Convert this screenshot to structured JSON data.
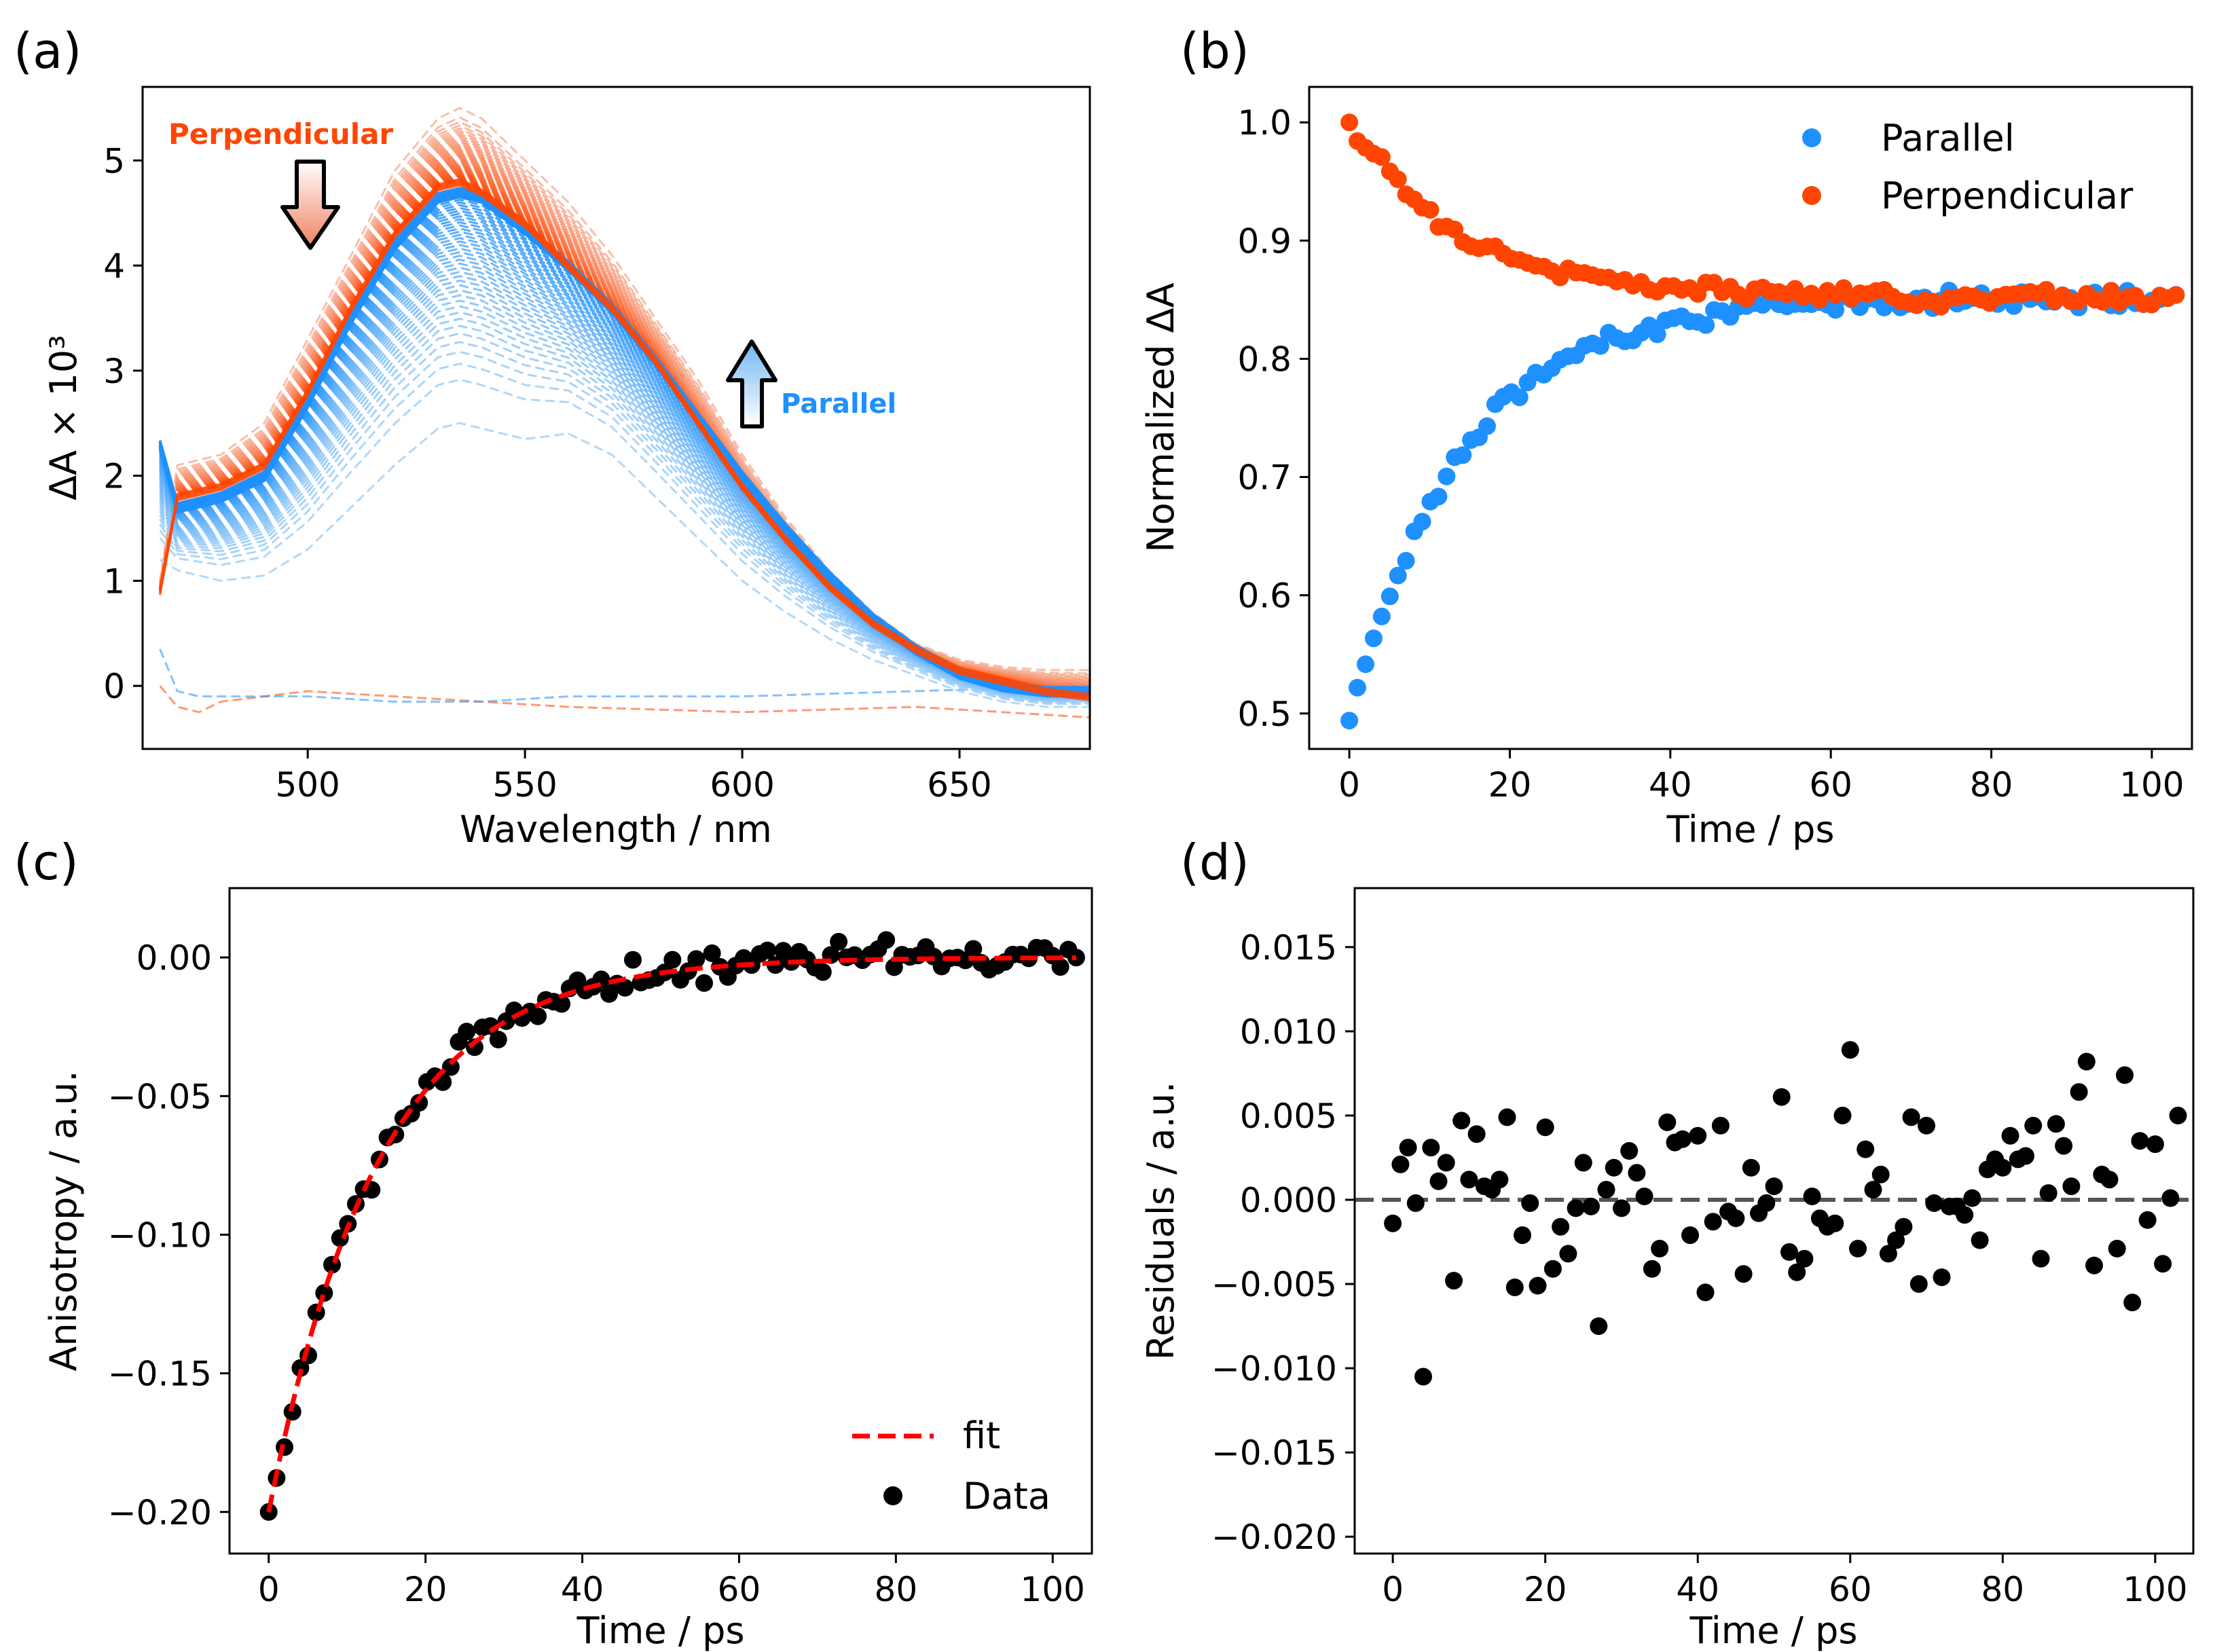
{
  "figure": {
    "panel_labels": [
      "(a)",
      "(b)",
      "(c)",
      "(d)"
    ]
  },
  "colors": {
    "orange": "#FF4500",
    "orange_light": "#F7A88A",
    "blue": "#1E90FF",
    "blue_light": "#9BCDF5",
    "red": "#FF0000",
    "black": "#000000",
    "dash_gray": "#555555"
  },
  "chart_data": [
    {
      "panel": "(a)",
      "type": "line",
      "xlabel": "Wavelength / nm",
      "ylabel": "ΔA × 10³",
      "xlim": [
        462,
        680
      ],
      "ylim": [
        -0.6,
        5.7
      ],
      "xticks": [
        500,
        550,
        600,
        650
      ],
      "yticks": [
        0,
        1,
        2,
        3,
        4,
        5
      ],
      "annotations": {
        "perp_label": "Perpendicular",
        "par_label": "Parallel",
        "perp_arrow": "down",
        "par_arrow": "up"
      },
      "series": [
        {
          "name": "Perpendicular (early, highest)",
          "color": "#FF4500",
          "style": "dashed",
          "x": [
            466,
            470,
            480,
            490,
            500,
            510,
            520,
            530,
            535,
            540,
            550,
            560,
            570,
            580,
            590,
            600,
            610,
            620,
            630,
            640,
            650,
            660,
            670,
            680
          ],
          "y": [
            1.0,
            2.1,
            2.2,
            2.5,
            3.3,
            4.1,
            4.9,
            5.4,
            5.5,
            5.4,
            5.0,
            4.6,
            4.1,
            3.5,
            2.9,
            2.2,
            1.6,
            1.1,
            0.7,
            0.4,
            0.25,
            0.18,
            0.15,
            0.15
          ]
        },
        {
          "name": "Perpendicular (late)",
          "color": "#FF4500",
          "style": "dashed",
          "x": [
            466,
            470,
            480,
            490,
            500,
            510,
            520,
            530,
            535,
            540,
            550,
            560,
            570,
            580,
            590,
            600,
            610,
            620,
            630,
            640,
            650,
            660,
            670,
            680
          ],
          "y": [
            0.9,
            1.8,
            1.9,
            2.1,
            2.8,
            3.6,
            4.3,
            4.75,
            4.8,
            4.7,
            4.4,
            4.0,
            3.6,
            3.1,
            2.5,
            1.9,
            1.4,
            0.95,
            0.6,
            0.35,
            0.15,
            0.05,
            -0.05,
            -0.1
          ]
        },
        {
          "name": "Parallel (late)",
          "color": "#1E90FF",
          "style": "dashed",
          "x": [
            466,
            470,
            480,
            490,
            500,
            510,
            520,
            530,
            535,
            540,
            550,
            560,
            570,
            580,
            590,
            600,
            610,
            620,
            630,
            640,
            650,
            660,
            670,
            680
          ],
          "y": [
            2.3,
            1.7,
            1.8,
            2.0,
            2.7,
            3.5,
            4.2,
            4.65,
            4.7,
            4.65,
            4.35,
            4.0,
            3.6,
            3.1,
            2.55,
            2.0,
            1.5,
            1.05,
            0.65,
            0.35,
            0.12,
            0.0,
            -0.05,
            -0.05
          ]
        },
        {
          "name": "Parallel (early, lowest)",
          "color": "#1E90FF",
          "style": "dashed",
          "x": [
            466,
            470,
            480,
            490,
            500,
            510,
            520,
            530,
            535,
            540,
            550,
            560,
            570,
            580,
            590,
            600,
            610,
            620,
            630,
            640,
            650,
            660,
            670,
            680
          ],
          "y": [
            1.2,
            1.1,
            1.0,
            1.05,
            1.3,
            1.7,
            2.1,
            2.45,
            2.5,
            2.45,
            2.35,
            2.4,
            2.2,
            1.8,
            1.4,
            1.0,
            0.7,
            0.45,
            0.25,
            0.1,
            -0.05,
            -0.15,
            -0.2,
            -0.2
          ]
        },
        {
          "name": "Perpendicular (t=0 baseline)",
          "color": "#FF4500",
          "style": "dashed",
          "x": [
            466,
            470,
            475,
            480,
            490,
            500,
            520,
            540,
            560,
            600,
            640,
            680
          ],
          "y": [
            0.0,
            -0.2,
            -0.25,
            -0.15,
            -0.1,
            -0.05,
            -0.1,
            -0.15,
            -0.2,
            -0.25,
            -0.2,
            -0.3
          ]
        },
        {
          "name": "Parallel (t=0 baseline)",
          "color": "#1E90FF",
          "style": "dashed",
          "x": [
            466,
            470,
            475,
            480,
            490,
            500,
            520,
            540,
            560,
            600,
            640,
            680
          ],
          "y": [
            0.35,
            -0.05,
            -0.1,
            -0.1,
            -0.1,
            -0.1,
            -0.15,
            -0.15,
            -0.1,
            -0.1,
            -0.05,
            0.0
          ]
        }
      ]
    },
    {
      "panel": "(b)",
      "type": "scatter",
      "xlabel": "Time / ps",
      "ylabel": "Normalized   ΔA",
      "xlim": [
        -5,
        105
      ],
      "ylim": [
        0.47,
        1.03
      ],
      "xticks": [
        0,
        20,
        40,
        60,
        80,
        100
      ],
      "yticks": [
        0.5,
        0.6,
        0.7,
        0.8,
        0.9,
        1.0
      ],
      "legend": {
        "entries": [
          "Parallel",
          "Perpendicular"
        ],
        "loc": "top-right"
      },
      "series": [
        {
          "name": "Parallel",
          "color": "#1E90FF",
          "tau_ps": 14.0,
          "t_max": 103,
          "n": 103,
          "start": 0.494,
          "end": 0.852,
          "noise": 0.006
        },
        {
          "name": "Perpendicular",
          "color": "#FF4500",
          "tau_ps": 14.0,
          "t_max": 103,
          "n": 103,
          "start": 1.0,
          "end": 0.852,
          "noise": 0.005
        }
      ]
    },
    {
      "panel": "(c)",
      "type": "scatter",
      "xlabel": "Time / ps",
      "ylabel": "Anisotropy / a.u.",
      "xlim": [
        -5,
        105
      ],
      "ylim": [
        -0.215,
        0.025
      ],
      "xticks": [
        0,
        20,
        40,
        60,
        80,
        100
      ],
      "yticks": [
        -0.2,
        -0.15,
        -0.1,
        -0.05,
        0.0
      ],
      "ytick_labels": [
        "−0.20",
        "−0.15",
        "−0.10",
        "−0.05",
        "0.00"
      ],
      "legend": {
        "entries": [
          "fit",
          "Data"
        ],
        "loc": "lower-right"
      },
      "series": [
        {
          "name": "fit",
          "color": "#FF0000",
          "style": "dashed",
          "model": "exponential",
          "amplitude": -0.2,
          "tau_ps": 14.0,
          "offset": 0.0
        },
        {
          "name": "Data",
          "color": "#000000",
          "n": 103,
          "noise": 0.004
        }
      ]
    },
    {
      "panel": "(d)",
      "type": "scatter",
      "xlabel": "Time / ps",
      "ylabel": "Residuals / a.u.",
      "xlim": [
        -5,
        105
      ],
      "ylim": [
        -0.021,
        0.0185
      ],
      "xticks": [
        0,
        20,
        40,
        60,
        80,
        100
      ],
      "yticks": [
        -0.02,
        -0.015,
        -0.01,
        -0.005,
        0.0,
        0.005,
        0.01,
        0.015
      ],
      "ytick_labels": [
        "−0.020",
        "−0.015",
        "−0.010",
        "−0.005",
        "0.000",
        "0.005",
        "0.010",
        "0.015"
      ],
      "zero_line": {
        "y": 0.0,
        "color": "#555555",
        "style": "dashed"
      },
      "series": [
        {
          "name": "Residuals",
          "color": "#000000",
          "x": [
            0,
            1,
            2,
            3,
            4,
            5,
            6,
            7,
            8,
            9,
            10,
            11,
            12,
            13,
            14,
            15,
            16,
            17,
            18,
            19,
            20,
            21,
            22,
            23,
            24,
            25,
            26,
            27,
            28,
            29,
            30,
            31,
            32,
            33,
            34,
            35,
            36,
            37,
            38,
            39,
            40,
            41,
            42,
            43,
            44,
            45,
            46,
            47,
            48,
            49,
            50,
            51,
            52,
            53,
            54,
            55,
            56,
            57,
            58,
            59,
            60,
            61,
            62,
            63,
            64,
            65,
            66,
            67,
            68,
            69,
            70,
            71,
            72,
            73,
            74,
            75,
            76,
            77,
            78,
            79,
            80,
            81,
            82,
            83,
            84,
            85,
            86,
            87,
            88,
            89,
            90,
            91,
            92,
            93,
            94,
            95,
            96,
            97,
            98,
            99,
            100,
            101,
            102,
            103
          ],
          "y": [
            -0.0014,
            0.0021,
            0.0031,
            -0.0002,
            -0.0105,
            0.0031,
            0.0011,
            0.0022,
            -0.0048,
            0.0047,
            0.0012,
            0.0039,
            0.0008,
            0.0006,
            0.0012,
            0.0049,
            -0.0052,
            -0.0021,
            -0.0002,
            -0.0051,
            0.0043,
            -0.0041,
            -0.0016,
            -0.0032,
            -0.0005,
            0.0022,
            -0.0004,
            -0.0075,
            0.0006,
            0.0019,
            -0.0005,
            0.0029,
            0.0016,
            0.0002,
            -0.0041,
            -0.0029,
            0.0046,
            0.0034,
            0.0036,
            -0.0021,
            0.0038,
            -0.0055,
            -0.0013,
            0.0044,
            -0.0007,
            -0.0011,
            -0.0044,
            0.0019,
            -0.0008,
            -0.0002,
            0.0008,
            0.0061,
            -0.0031,
            -0.0043,
            -0.0035,
            0.0002,
            -0.0011,
            -0.0016,
            -0.0014,
            0.005,
            0.0089,
            -0.0029,
            0.003,
            0.0006,
            0.0015,
            -0.0032,
            -0.0024,
            -0.0016,
            0.0049,
            -0.005,
            0.0044,
            -0.0002,
            -0.0046,
            -0.0004,
            -0.0004,
            -0.0009,
            0.0001,
            -0.0024,
            0.0018,
            0.0024,
            0.0019,
            0.0038,
            0.0024,
            0.0026,
            0.0044,
            -0.0035,
            0.0004,
            0.0045,
            0.0032,
            0.0008,
            0.0064,
            0.0082,
            -0.0039,
            0.0015,
            0.0012,
            -0.0029,
            0.0074,
            -0.0061,
            0.0035,
            -0.0012,
            0.0033,
            -0.0038,
            0.0001,
            0.005
          ]
        }
      ]
    }
  ]
}
